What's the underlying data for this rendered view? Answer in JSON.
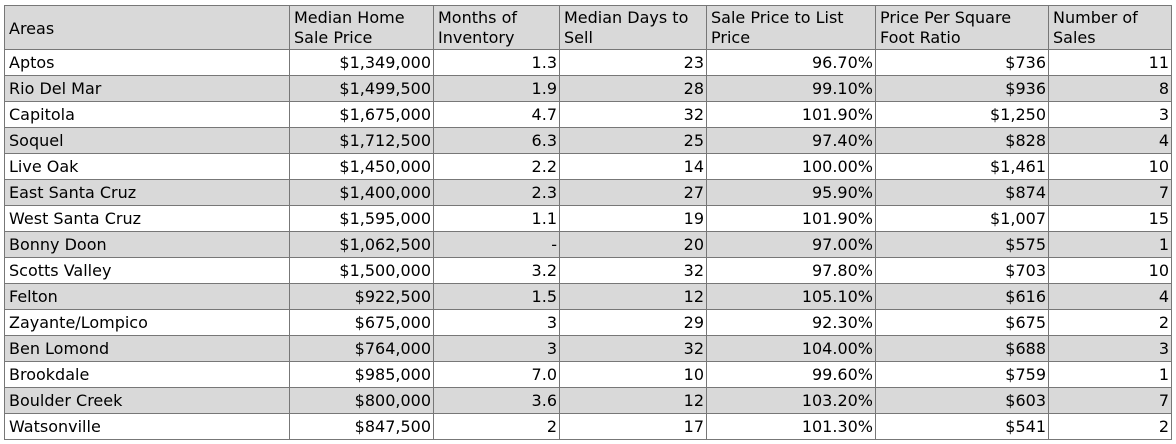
{
  "table": {
    "headers": [
      "Areas",
      "Median Home Sale Price",
      "Months of Inventory",
      "Median Days to Sell",
      "Sale Price to List Price",
      "Price Per Square Foot Ratio",
      "Number of Sales"
    ],
    "rows": [
      [
        "Aptos",
        "$1,349,000",
        "1.3",
        "23",
        "96.70%",
        "$736",
        "11"
      ],
      [
        "Rio Del Mar",
        "$1,499,500",
        "1.9",
        "28",
        "99.10%",
        "$936",
        "8"
      ],
      [
        "Capitola",
        "$1,675,000",
        "4.7",
        "32",
        "101.90%",
        "$1,250",
        "3"
      ],
      [
        "Soquel",
        "$1,712,500",
        "6.3",
        "25",
        "97.40%",
        "$828",
        "4"
      ],
      [
        "Live Oak",
        "$1,450,000",
        "2.2",
        "14",
        "100.00%",
        "$1,461",
        "10"
      ],
      [
        "East Santa Cruz",
        "$1,400,000",
        "2.3",
        "27",
        "95.90%",
        "$874",
        "7"
      ],
      [
        "West Santa Cruz",
        "$1,595,000",
        "1.1",
        "19",
        "101.90%",
        "$1,007",
        "15"
      ],
      [
        "Bonny Doon",
        "$1,062,500",
        "-",
        "20",
        "97.00%",
        "$575",
        "1"
      ],
      [
        "Scotts Valley",
        "$1,500,000",
        "3.2",
        "32",
        "97.80%",
        "$703",
        "10"
      ],
      [
        "Felton",
        "$922,500",
        "1.5",
        "12",
        "105.10%",
        "$616",
        "4"
      ],
      [
        "Zayante/Lompico",
        "$675,000",
        "3",
        "29",
        "92.30%",
        "$675",
        "2"
      ],
      [
        "Ben Lomond",
        "$764,000",
        "3",
        "32",
        "104.00%",
        "$688",
        "3"
      ],
      [
        "Brookdale",
        "$985,000",
        "7.0",
        "10",
        "99.60%",
        "$759",
        "1"
      ],
      [
        "Boulder Creek",
        "$800,000",
        "3.6",
        "12",
        "103.20%",
        "$603",
        "7"
      ],
      [
        "Watsonville",
        "$847,500",
        "2",
        "17",
        "101.30%",
        "$541",
        "2"
      ]
    ]
  }
}
